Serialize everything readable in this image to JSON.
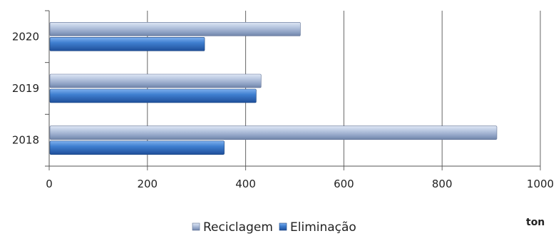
{
  "chart_data": {
    "type": "bar",
    "orientation": "horizontal",
    "categories": [
      "2020",
      "2019",
      "2018"
    ],
    "series": [
      {
        "name": "Reciclagem",
        "values": [
          510,
          430,
          910
        ],
        "color": "#a9b9d6"
      },
      {
        "name": "Eliminação",
        "values": [
          315,
          420,
          355
        ],
        "color": "#3f78c8"
      }
    ],
    "xlim": [
      0,
      1000
    ],
    "xticks": [
      "0",
      "200",
      "400",
      "600",
      "800",
      "1000"
    ],
    "xunit": "ton",
    "grid": "vertical",
    "legend_position": "bottom"
  }
}
